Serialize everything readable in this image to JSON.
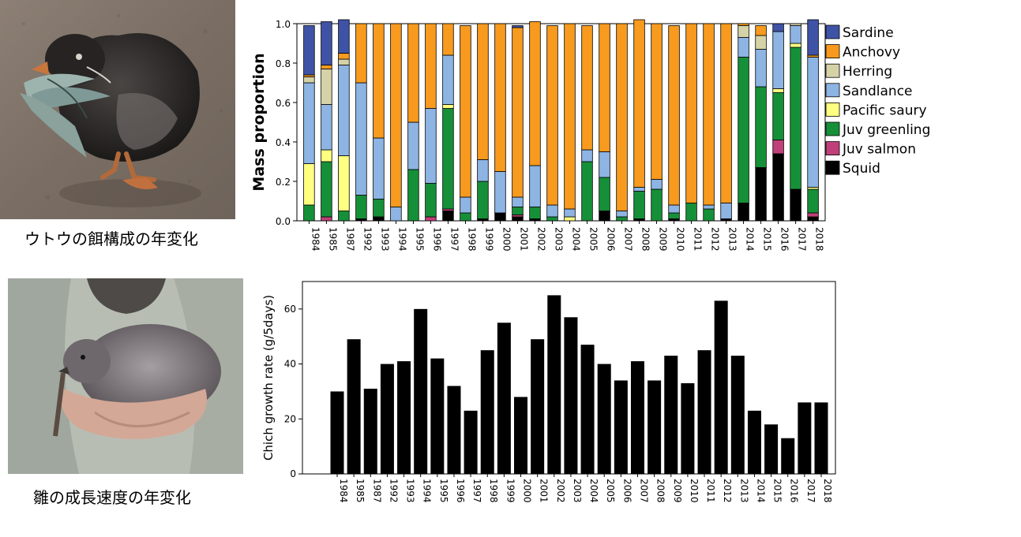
{
  "photos": [
    {
      "name": "rhinoceros-auklet-adult-with-fish",
      "caption": "ウトウの餌構成の年変化"
    },
    {
      "name": "rhinoceros-auklet-chick-in-hands",
      "caption": "雛の成長速度の年変化"
    }
  ],
  "chart_data": [
    {
      "type": "bar",
      "stacked": true,
      "title": "",
      "xlabel": "",
      "ylabel": "Mass proportion",
      "ylim": [
        0,
        1.0
      ],
      "yticks": [
        "0.0",
        "0.2",
        "0.4",
        "0.6",
        "0.8",
        "1.0"
      ],
      "legend_position": "right",
      "categories": [
        "1984",
        "1985",
        "1987",
        "1992",
        "1993",
        "1994",
        "1995",
        "1996",
        "1997",
        "1998",
        "1999",
        "2000",
        "2001",
        "2002",
        "2003",
        "2004",
        "2005",
        "2006",
        "2007",
        "2008",
        "2009",
        "2010",
        "2011",
        "2012",
        "2013",
        "2014",
        "2015",
        "2016",
        "2017",
        "2018"
      ],
      "series": [
        {
          "name": "Squid",
          "color": "#000000",
          "values": [
            0.0,
            0.0,
            0.0,
            0.01,
            0.02,
            0.0,
            0.0,
            0.0,
            0.05,
            0.0,
            0.01,
            0.04,
            0.02,
            0.01,
            0.0,
            0.0,
            0.0,
            0.05,
            0.0,
            0.01,
            0.0,
            0.01,
            0.0,
            0.0,
            0.01,
            0.09,
            0.27,
            0.34,
            0.16,
            0.02
          ]
        },
        {
          "name": "Juv salmon",
          "color": "#c0407a",
          "values": [
            0.0,
            0.02,
            0.0,
            0.0,
            0.0,
            0.0,
            0.0,
            0.02,
            0.01,
            0.0,
            0.0,
            0.0,
            0.01,
            0.0,
            0.0,
            0.0,
            0.0,
            0.0,
            0.0,
            0.0,
            0.0,
            0.0,
            0.0,
            0.0,
            0.0,
            0.0,
            0.0,
            0.07,
            0.0,
            0.02
          ]
        },
        {
          "name": "Juv greenling",
          "color": "#169038",
          "values": [
            0.08,
            0.28,
            0.05,
            0.12,
            0.09,
            0.0,
            0.26,
            0.17,
            0.51,
            0.04,
            0.19,
            0.0,
            0.04,
            0.06,
            0.02,
            0.0,
            0.3,
            0.17,
            0.02,
            0.14,
            0.16,
            0.03,
            0.09,
            0.06,
            0.0,
            0.74,
            0.41,
            0.24,
            0.72,
            0.12
          ]
        },
        {
          "name": "Pacific saury",
          "color": "#ffff80",
          "values": [
            0.21,
            0.06,
            0.28,
            0.0,
            0.0,
            0.0,
            0.0,
            0.0,
            0.02,
            0.0,
            0.0,
            0.0,
            0.0,
            0.0,
            0.0,
            0.02,
            0.0,
            0.0,
            0.0,
            0.0,
            0.0,
            0.0,
            0.0,
            0.0,
            0.0,
            0.0,
            0.0,
            0.02,
            0.02,
            0.01
          ]
        },
        {
          "name": "Sandlance",
          "color": "#8db4e2",
          "values": [
            0.41,
            0.23,
            0.46,
            0.57,
            0.31,
            0.07,
            0.24,
            0.38,
            0.25,
            0.08,
            0.11,
            0.21,
            0.05,
            0.21,
            0.06,
            0.04,
            0.06,
            0.13,
            0.03,
            0.02,
            0.05,
            0.04,
            0.0,
            0.02,
            0.08,
            0.1,
            0.19,
            0.29,
            0.09,
            0.66
          ]
        },
        {
          "name": "Herring",
          "color": "#d6d2a8",
          "values": [
            0.03,
            0.18,
            0.03,
            0.0,
            0.0,
            0.0,
            0.0,
            0.0,
            0.0,
            0.0,
            0.0,
            0.0,
            0.0,
            0.0,
            0.0,
            0.0,
            0.0,
            0.0,
            0.0,
            0.0,
            0.0,
            0.0,
            0.0,
            0.0,
            0.0,
            0.06,
            0.07,
            0.0,
            0.01,
            0.0
          ]
        },
        {
          "name": "Anchovy",
          "color": "#f79a1e",
          "values": [
            0.01,
            0.02,
            0.03,
            0.3,
            0.58,
            0.93,
            0.5,
            0.43,
            0.16,
            0.87,
            0.69,
            0.75,
            0.86,
            0.73,
            0.91,
            0.94,
            0.63,
            0.65,
            0.95,
            0.85,
            0.79,
            0.91,
            0.91,
            0.92,
            0.91,
            0.01,
            0.05,
            0.0,
            0.0,
            0.01
          ]
        },
        {
          "name": "Sardine",
          "color": "#3f53a6",
          "values": [
            0.25,
            0.22,
            0.17,
            0.0,
            0.0,
            0.0,
            0.0,
            0.0,
            0.0,
            0.0,
            0.0,
            0.0,
            0.01,
            0.0,
            0.0,
            0.0,
            0.0,
            0.0,
            0.0,
            0.0,
            0.0,
            0.0,
            0.0,
            0.0,
            0.0,
            0.0,
            0.0,
            0.04,
            0.0,
            0.18
          ]
        }
      ],
      "legend_order": [
        "Sardine",
        "Anchovy",
        "Herring",
        "Sandlance",
        "Pacific saury",
        "Juv greenling",
        "Juv salmon",
        "Squid"
      ]
    },
    {
      "type": "bar",
      "title": "",
      "xlabel": "",
      "ylabel": "Chich growth rate (g/5days)",
      "ylim": [
        0,
        70
      ],
      "yticks": [
        "0",
        "20",
        "40",
        "60"
      ],
      "bar_color": "#000000",
      "categories": [
        "1984",
        "1985",
        "1987",
        "1992",
        "1993",
        "1994",
        "1995",
        "1996",
        "1997",
        "1998",
        "1999",
        "2000",
        "2001",
        "2002",
        "2003",
        "2004",
        "2005",
        "2006",
        "2007",
        "2008",
        "2009",
        "2010",
        "2011",
        "2012",
        "2013",
        "2014",
        "2015",
        "2016",
        "2017",
        "2018"
      ],
      "values": [
        30,
        49,
        31,
        40,
        41,
        60,
        42,
        32,
        23,
        45,
        55,
        28,
        49,
        65,
        57,
        47,
        40,
        34,
        41,
        34,
        43,
        33,
        45,
        63,
        43,
        23,
        18,
        13,
        26,
        26
      ]
    }
  ]
}
